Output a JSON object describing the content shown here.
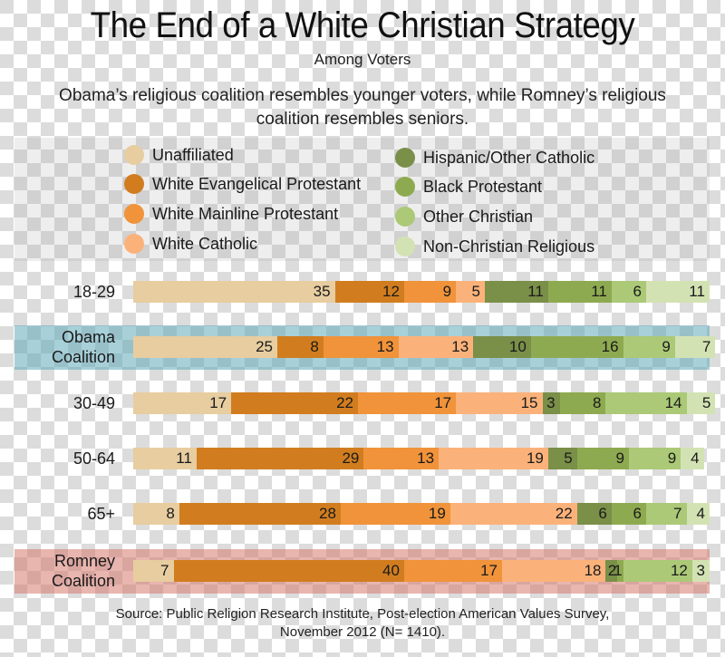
{
  "chart_data": {
    "type": "bar",
    "orientation": "horizontal",
    "stacked": true,
    "title": "The End of a White Christian Strategy",
    "subtitle": "Among Voters",
    "description": "Obama’s religious coalition resembles younger voters, while Romney’s religious coalition resembles seniors.",
    "xlabel": "",
    "ylabel": "",
    "legend_position": "top",
    "categories": [
      {
        "label": "18-29",
        "highlight": null
      },
      {
        "label": "Obama Coalition",
        "highlight": "obama"
      },
      {
        "label": "30-49",
        "highlight": null
      },
      {
        "label": "50-64",
        "highlight": null
      },
      {
        "label": "65+",
        "highlight": null
      },
      {
        "label": "Romney Coalition",
        "highlight": "romney"
      }
    ],
    "series": [
      {
        "name": "Unaffiliated",
        "color": "#e7cda0",
        "values": [
          35,
          25,
          17,
          11,
          8,
          7
        ]
      },
      {
        "name": "White Evangelical Protestant",
        "color": "#d17d1f",
        "values": [
          12,
          8,
          22,
          29,
          28,
          40
        ]
      },
      {
        "name": "White Mainline Protestant",
        "color": "#f0933a",
        "values": [
          9,
          13,
          17,
          13,
          19,
          17
        ]
      },
      {
        "name": "White Catholic",
        "color": "#fbb27a",
        "values": [
          5,
          13,
          15,
          19,
          22,
          18
        ]
      },
      {
        "name": "Hispanic/Other Catholic",
        "color": "#7a8f48",
        "values": [
          11,
          10,
          3,
          5,
          6,
          2
        ]
      },
      {
        "name": "Black Protestant",
        "color": "#8eaa50",
        "values": [
          11,
          16,
          8,
          9,
          6,
          1
        ]
      },
      {
        "name": "Other Christian",
        "color": "#abc977",
        "values": [
          6,
          9,
          14,
          9,
          7,
          12
        ]
      },
      {
        "name": "Non-Christian Religious",
        "color": "#d3e2b3",
        "values": [
          11,
          7,
          5,
          4,
          4,
          3
        ]
      }
    ],
    "xlim": [
      0,
      100
    ],
    "grid": false,
    "source": "Source: Public Religion Research Institute, Post-election American Values Survey, November 2012 (N= 1410)."
  },
  "source_lines": [
    "Source: Public Religion Research Institute, Post-election American Values Survey,",
    "November 2012 (N= 1410)."
  ],
  "row_label_lines": [
    [
      "18-29"
    ],
    [
      "Obama",
      "Coalition"
    ],
    [
      "30-49"
    ],
    [
      "50-64"
    ],
    [
      "65+"
    ],
    [
      "Romney",
      "Coalition"
    ]
  ],
  "highlight_colors": {
    "obama": "#60aab9",
    "romney": "#d7786e"
  }
}
